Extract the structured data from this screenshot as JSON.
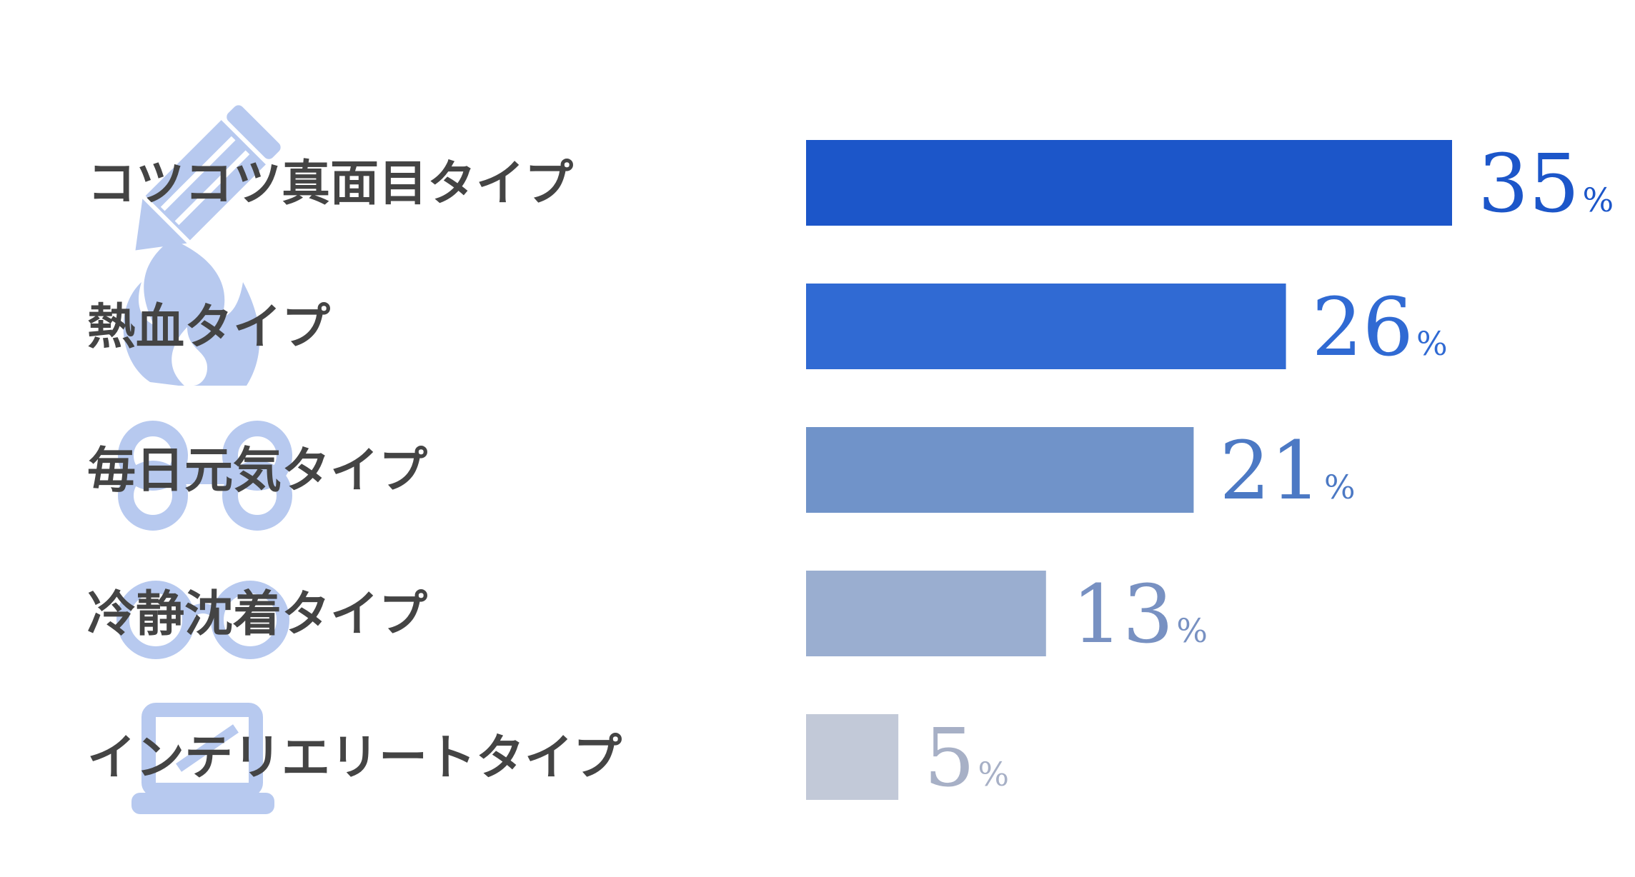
{
  "chart_data": {
    "type": "bar",
    "orientation": "horizontal",
    "categories": [
      "コツコツ真面目タイプ",
      "熱血タイプ",
      "毎日元気タイプ",
      "冷静沈着タイプ",
      "インテリエリートタイプ"
    ],
    "values": [
      35,
      26,
      21,
      13,
      5
    ],
    "unit": "%",
    "bar_colors": [
      "#1c56c9",
      "#306ad3",
      "#7093c9",
      "#9aaed0",
      "#c2c9d8"
    ],
    "label_colors": [
      "#1c56c9",
      "#306ad3",
      "#4c79c4",
      "#7891c2",
      "#a7b0c6"
    ],
    "category_icons": [
      "pencil-icon",
      "flame-icon",
      "dumbbell-icon",
      "glasses-icon",
      "laptop-icon"
    ],
    "icon_color": "#b7c9ef",
    "xlim": [
      0,
      35
    ],
    "grid": false,
    "legend": "none",
    "title": "",
    "xlabel": "",
    "ylabel": ""
  }
}
